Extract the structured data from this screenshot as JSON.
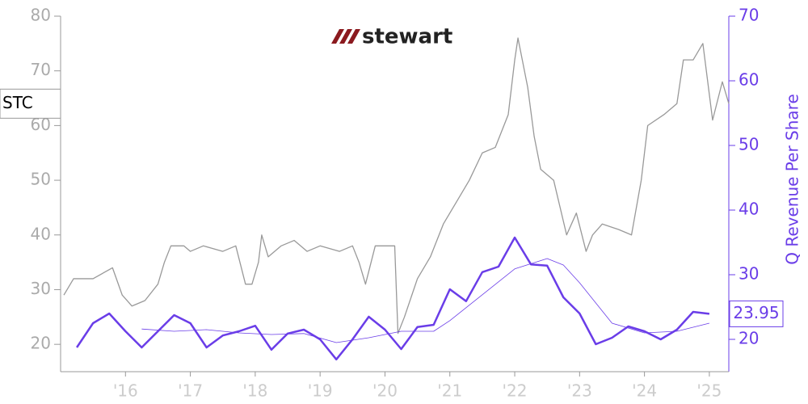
{
  "chart_data": {
    "type": "line",
    "logo": "stewart",
    "y2_label": "Q Revenue Per Share",
    "xlim": [
      2015,
      2025.3
    ],
    "xticks": [
      {
        "value": 2016,
        "label": "'16"
      },
      {
        "value": 2017,
        "label": "'17"
      },
      {
        "value": 2018,
        "label": "'18"
      },
      {
        "value": 2019,
        "label": "'19"
      },
      {
        "value": 2020,
        "label": "'20"
      },
      {
        "value": 2021,
        "label": "'21"
      },
      {
        "value": 2022,
        "label": "'22"
      },
      {
        "value": 2023,
        "label": "'23"
      },
      {
        "value": 2024,
        "label": "'24"
      },
      {
        "value": 2025,
        "label": "'25"
      }
    ],
    "ylim": [
      15,
      80
    ],
    "yticks": [
      20,
      30,
      40,
      50,
      60,
      70,
      80
    ],
    "y2lim": [
      15,
      70
    ],
    "y2ticks": [
      20,
      30,
      40,
      50,
      60,
      70
    ],
    "series": [
      {
        "name": "STC",
        "color": "#999999",
        "axis": "y",
        "x": [
          2015.05,
          2015.2,
          2015.5,
          2015.8,
          2015.95,
          2016.1,
          2016.3,
          2016.5,
          2016.6,
          2016.7,
          2016.9,
          2017.0,
          2017.2,
          2017.5,
          2017.7,
          2017.85,
          2017.95,
          2018.05,
          2018.1,
          2018.2,
          2018.4,
          2018.6,
          2018.8,
          2019.0,
          2019.3,
          2019.5,
          2019.6,
          2019.7,
          2019.85,
          2020.0,
          2020.15,
          2020.2,
          2020.3,
          2020.5,
          2020.7,
          2020.9,
          2021.1,
          2021.3,
          2021.5,
          2021.7,
          2021.9,
          2022.0,
          2022.05,
          2022.2,
          2022.3,
          2022.4,
          2022.6,
          2022.8,
          2022.95,
          2023.1,
          2023.2,
          2023.35,
          2023.6,
          2023.8,
          2023.95,
          2024.05,
          2024.3,
          2024.5,
          2024.6,
          2024.75,
          2024.9,
          2025.05,
          2025.2,
          2025.3
        ],
        "values": [
          29,
          32,
          32,
          34,
          29,
          27,
          28,
          31,
          35,
          38,
          38,
          37,
          38,
          37,
          38,
          31,
          31,
          35,
          40,
          36,
          38,
          39,
          37,
          38,
          37,
          38,
          35,
          31,
          38,
          38,
          38,
          22,
          25,
          32,
          36,
          42,
          46,
          50,
          55,
          56,
          62,
          72,
          76,
          67,
          58,
          52,
          50,
          40,
          44,
          37,
          40,
          42,
          41,
          40,
          50,
          60,
          62,
          64,
          72,
          72,
          75,
          61,
          68,
          64
        ]
      },
      {
        "color": "#6a3de8",
        "axis": "y2",
        "x": [
          2015.25,
          2015.5,
          2015.75,
          2016.0,
          2016.25,
          2016.5,
          2016.75,
          2017.0,
          2017.25,
          2017.5,
          2017.75,
          2018.0,
          2018.25,
          2018.5,
          2018.75,
          2019.0,
          2019.25,
          2019.5,
          2019.75,
          2020.0,
          2020.25,
          2020.5,
          2020.75,
          2021.0,
          2021.25,
          2021.5,
          2021.75,
          2022.0,
          2022.25,
          2022.5,
          2022.75,
          2023.0,
          2023.25,
          2023.5,
          2023.75,
          2024.0,
          2024.25,
          2024.5,
          2024.75,
          2025.0
        ],
        "values": [
          18.75,
          22.5,
          24,
          21.25,
          18.75,
          21.25,
          23.75,
          22.5,
          18.75,
          20.6,
          21.25,
          22.1,
          18.4,
          20.9,
          21.5,
          20,
          16.9,
          20,
          23.5,
          21.5,
          18.5,
          21.9,
          22.25,
          27.75,
          25.9,
          30.4,
          31.25,
          35.75,
          31.6,
          31.4,
          26.5,
          24,
          19.25,
          20.25,
          22,
          21.25,
          20,
          21.5,
          24.25,
          23.95
        ]
      },
      {
        "color": "#6a3de8",
        "axis": "y2",
        "thin": true,
        "x": [
          2016.25,
          2016.75,
          2017.25,
          2017.75,
          2018.25,
          2018.75,
          2019.25,
          2019.75,
          2020.25,
          2020.75,
          2021.0,
          2021.5,
          2022.0,
          2022.5,
          2022.75,
          2023.0,
          2023.5,
          2024.0,
          2024.5,
          2025.0
        ],
        "values": [
          21.6,
          21.25,
          21.5,
          21,
          20.75,
          20.9,
          19.5,
          20.25,
          21.25,
          21.25,
          22.9,
          26.9,
          30.9,
          32.5,
          31.5,
          28.75,
          22.5,
          21,
          21.25,
          22.5
        ]
      }
    ]
  }
}
